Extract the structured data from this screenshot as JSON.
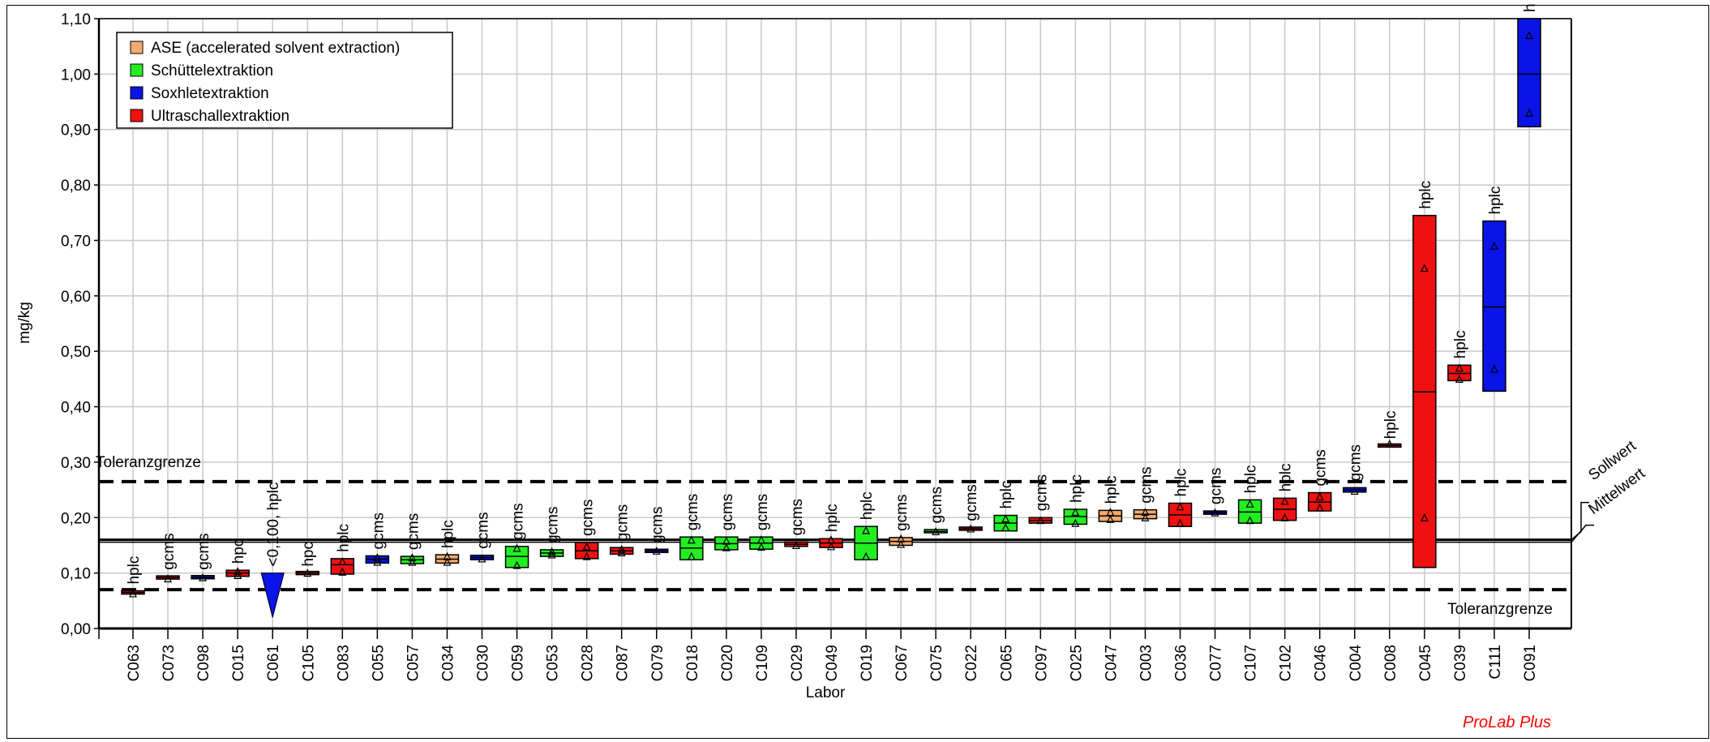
{
  "chart_data": {
    "type": "box",
    "xlabel": "Labor",
    "ylabel": "mg/kg",
    "ylim": [
      0,
      1.1
    ],
    "yticks": [
      "0,00",
      "0,10",
      "0,20",
      "0,30",
      "0,40",
      "0,50",
      "0,60",
      "0,70",
      "0,80",
      "0,90",
      "1,00",
      "1,10"
    ],
    "grid": true,
    "legend_position": "top-left",
    "legend": [
      {
        "name": "ASE (accelerated solvent extraction)",
        "key": "ase",
        "color": "#f5aa6e"
      },
      {
        "name": "Schüttelextraktion",
        "key": "schuettel",
        "color": "#22ee22"
      },
      {
        "name": "Soxhletextraktion",
        "key": "soxhlet",
        "color": "#0a14e6"
      },
      {
        "name": "Ultraschallextraktion",
        "key": "ultra",
        "color": "#ee1111"
      }
    ],
    "reference_lines": [
      {
        "label": "Toleranzgrenze",
        "value": 0.265,
        "style": "dashed"
      },
      {
        "label": "Sollwert",
        "value": 0.16,
        "style": "solid"
      },
      {
        "label": "Mittelwert",
        "value": 0.16,
        "style": "solid"
      },
      {
        "label": "Toleranzgrenze",
        "value": 0.07,
        "style": "dashed"
      }
    ],
    "labs": [
      {
        "lab": "C063",
        "method": "hplc",
        "ext": "ultra",
        "low": 0.062,
        "high": 0.068,
        "mid": 0.065,
        "pts": [
          0.063
        ]
      },
      {
        "lab": "C073",
        "method": "gcms",
        "ext": "ultra",
        "low": 0.09,
        "high": 0.094,
        "mid": 0.092,
        "pts": [
          0.09
        ]
      },
      {
        "lab": "C098",
        "method": "gcms",
        "ext": "soxhlet",
        "low": 0.091,
        "high": 0.094,
        "mid": 0.092,
        "pts": [
          0.092
        ]
      },
      {
        "lab": "C015",
        "method": "hpc",
        "ext": "ultra",
        "low": 0.094,
        "high": 0.105,
        "mid": 0.1,
        "pts": [
          0.096,
          0.103
        ]
      },
      {
        "lab": "C061",
        "method": "<0,100, hplc",
        "ext": "soxhlet",
        "marker": "lt",
        "low": 0.02,
        "high": 0.1,
        "pts": []
      },
      {
        "lab": "C105",
        "method": "hpc",
        "ext": "ultra",
        "low": 0.1,
        "high": 0.1,
        "mid": 0.1,
        "pts": [
          0.1
        ]
      },
      {
        "lab": "C083",
        "method": "hplc",
        "ext": "ultra",
        "low": 0.098,
        "high": 0.126,
        "mid": 0.115,
        "pts": [
          0.102,
          0.121
        ]
      },
      {
        "lab": "C055",
        "method": "gcms",
        "ext": "soxhlet",
        "low": 0.118,
        "high": 0.131,
        "mid": 0.125,
        "pts": [
          0.12,
          0.128
        ]
      },
      {
        "lab": "C057",
        "method": "gcms",
        "ext": "schuettel",
        "low": 0.117,
        "high": 0.13,
        "mid": 0.124,
        "pts": [
          0.12,
          0.128
        ]
      },
      {
        "lab": "C034",
        "method": "hplc",
        "ext": "ase",
        "low": 0.118,
        "high": 0.133,
        "mid": 0.125,
        "pts": [
          0.12,
          0.13
        ]
      },
      {
        "lab": "C030",
        "method": "gcms",
        "ext": "soxhlet",
        "low": 0.124,
        "high": 0.132,
        "mid": 0.128,
        "pts": [
          0.126
        ]
      },
      {
        "lab": "C059",
        "method": "gcms",
        "ext": "schuettel",
        "low": 0.11,
        "high": 0.148,
        "mid": 0.13,
        "pts": [
          0.114,
          0.145
        ]
      },
      {
        "lab": "C053",
        "method": "gcms",
        "ext": "schuettel",
        "low": 0.13,
        "high": 0.142,
        "mid": 0.136,
        "pts": [
          0.133,
          0.139
        ]
      },
      {
        "lab": "C028",
        "method": "gcms",
        "ext": "ultra",
        "low": 0.126,
        "high": 0.155,
        "mid": 0.14,
        "pts": [
          0.13,
          0.148
        ]
      },
      {
        "lab": "C087",
        "method": "gcms",
        "ext": "ultra",
        "low": 0.134,
        "high": 0.146,
        "mid": 0.14,
        "pts": [
          0.137,
          0.143
        ]
      },
      {
        "lab": "C079",
        "method": "gcms",
        "ext": "soxhlet",
        "low": 0.138,
        "high": 0.142,
        "mid": 0.14,
        "pts": [
          0.14
        ]
      },
      {
        "lab": "C018",
        "method": "gcms",
        "ext": "schuettel",
        "low": 0.124,
        "high": 0.165,
        "mid": 0.145,
        "pts": [
          0.13,
          0.16
        ]
      },
      {
        "lab": "C020",
        "method": "gcms",
        "ext": "schuettel",
        "low": 0.142,
        "high": 0.165,
        "mid": 0.153,
        "pts": [
          0.146,
          0.158
        ]
      },
      {
        "lab": "C109",
        "method": "gcms",
        "ext": "schuettel",
        "low": 0.143,
        "high": 0.165,
        "mid": 0.154,
        "pts": [
          0.147,
          0.16
        ]
      },
      {
        "lab": "C029",
        "method": "gcms",
        "ext": "ultra",
        "low": 0.148,
        "high": 0.156,
        "mid": 0.152,
        "pts": [
          0.15
        ]
      },
      {
        "lab": "C049",
        "method": "hplc",
        "ext": "ultra",
        "low": 0.146,
        "high": 0.162,
        "mid": 0.154,
        "pts": [
          0.148,
          0.16
        ]
      },
      {
        "lab": "C019",
        "method": "hplc",
        "ext": "schuettel",
        "low": 0.124,
        "high": 0.184,
        "mid": 0.154,
        "pts": [
          0.13,
          0.177
        ]
      },
      {
        "lab": "C067",
        "method": "gcms",
        "ext": "ase",
        "low": 0.15,
        "high": 0.164,
        "mid": 0.157,
        "pts": [
          0.152,
          0.162
        ]
      },
      {
        "lab": "C075",
        "method": "gcms",
        "ext": "schuettel",
        "low": 0.173,
        "high": 0.178,
        "mid": 0.175,
        "pts": [
          0.175
        ]
      },
      {
        "lab": "C022",
        "method": "gcms",
        "ext": "ultra",
        "low": 0.178,
        "high": 0.182,
        "mid": 0.18,
        "pts": [
          0.18
        ]
      },
      {
        "lab": "C065",
        "method": "hplc",
        "ext": "schuettel",
        "low": 0.176,
        "high": 0.204,
        "mid": 0.19,
        "pts": [
          0.182,
          0.198
        ]
      },
      {
        "lab": "C097",
        "method": "gcms",
        "ext": "ultra",
        "low": 0.19,
        "high": 0.2,
        "mid": 0.195,
        "pts": [
          0.195
        ]
      },
      {
        "lab": "C025",
        "method": "hplc",
        "ext": "schuettel",
        "low": 0.188,
        "high": 0.215,
        "mid": 0.202,
        "pts": [
          0.19,
          0.21
        ]
      },
      {
        "lab": "C047",
        "method": "hplc",
        "ext": "ase",
        "low": 0.193,
        "high": 0.213,
        "mid": 0.203,
        "pts": [
          0.197,
          0.21
        ]
      },
      {
        "lab": "C003",
        "method": "gcms",
        "ext": "ase",
        "low": 0.198,
        "high": 0.214,
        "mid": 0.206,
        "pts": [
          0.2,
          0.21
        ]
      },
      {
        "lab": "C036",
        "method": "hplc",
        "ext": "ultra",
        "low": 0.184,
        "high": 0.226,
        "mid": 0.205,
        "pts": [
          0.19,
          0.22
        ]
      },
      {
        "lab": "C077",
        "method": "gcms",
        "ext": "soxhlet",
        "low": 0.206,
        "high": 0.212,
        "mid": 0.209,
        "pts": [
          0.209
        ]
      },
      {
        "lab": "C107",
        "method": "hplc",
        "ext": "schuettel",
        "low": 0.19,
        "high": 0.232,
        "mid": 0.21,
        "pts": [
          0.195,
          0.225
        ]
      },
      {
        "lab": "C102",
        "method": "hplc",
        "ext": "ultra",
        "low": 0.195,
        "high": 0.235,
        "mid": 0.215,
        "pts": [
          0.2,
          0.23
        ]
      },
      {
        "lab": "C046",
        "method": "gcms",
        "ext": "ultra",
        "low": 0.212,
        "high": 0.245,
        "mid": 0.228,
        "pts": [
          0.218,
          0.238
        ]
      },
      {
        "lab": "C004",
        "method": "gcms",
        "ext": "soxhlet",
        "low": 0.246,
        "high": 0.254,
        "mid": 0.25,
        "pts": [
          0.248
        ]
      },
      {
        "lab": "C008",
        "method": "hplc",
        "ext": "ultra",
        "low": 0.33,
        "high": 0.33,
        "mid": 0.33,
        "pts": [
          0.333
        ]
      },
      {
        "lab": "C045",
        "method": "hplc",
        "ext": "ultra",
        "low": 0.11,
        "high": 0.745,
        "mid": 0.427,
        "pts": [
          0.2,
          0.65
        ]
      },
      {
        "lab": "C039",
        "method": "hplc",
        "ext": "ultra",
        "low": 0.447,
        "high": 0.475,
        "mid": 0.46,
        "pts": [
          0.45,
          0.47
        ]
      },
      {
        "lab": "C111",
        "method": "hplc",
        "ext": "soxhlet",
        "low": 0.428,
        "high": 0.735,
        "mid": 0.58,
        "pts": [
          0.468,
          0.69
        ]
      },
      {
        "lab": "C091",
        "method": "h",
        "ext": "soxhlet",
        "low": 0.905,
        "high": 1.1,
        "mid": 1.0,
        "pts": [
          0.93,
          1.07
        ]
      }
    ]
  },
  "brand": "ProLab Plus"
}
